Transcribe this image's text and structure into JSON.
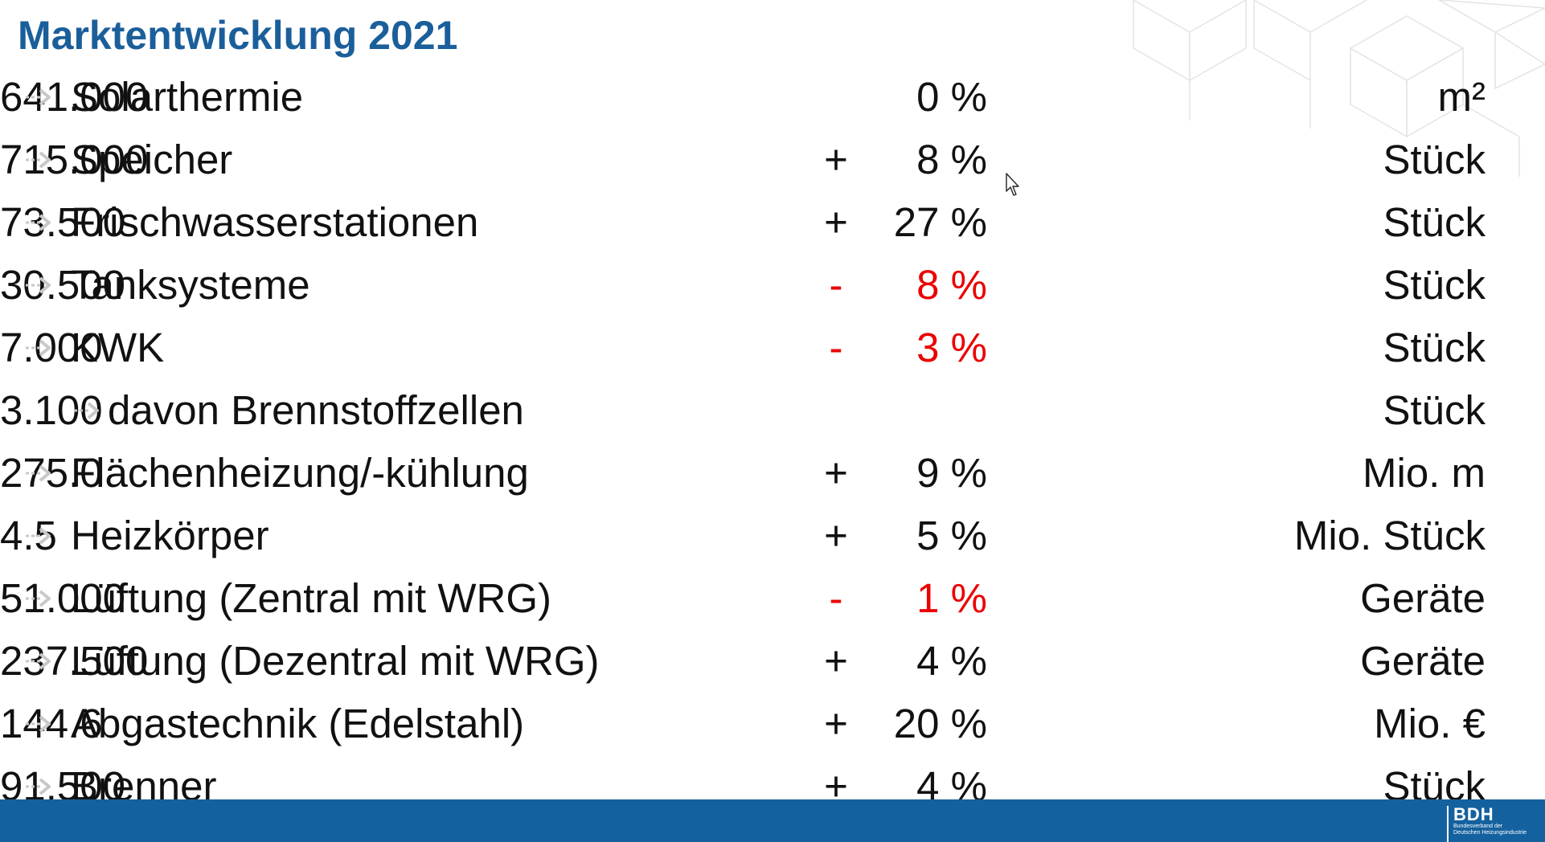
{
  "title": "Marktentwicklung 2021",
  "colors": {
    "title": "#1b5f9a",
    "negative": "#ea0000",
    "footer": "#14619f",
    "arrow": "#c8c8c8"
  },
  "rows": [
    {
      "label": "Solarthermie",
      "sign": "",
      "pct": "0 %",
      "value": "641.000",
      "unit": "m²",
      "negative": false,
      "indent": false
    },
    {
      "label": "Speicher",
      "sign": "+",
      "pct": "8 %",
      "value": "715.000",
      "unit": "Stück",
      "negative": false,
      "indent": false
    },
    {
      "label": "Frischwasserstationen",
      "sign": "+",
      "pct": "27 %",
      "value": "73.500",
      "unit": "Stück",
      "negative": false,
      "indent": false
    },
    {
      "label": "Tanksysteme",
      "sign": "-",
      "pct": "8 %",
      "value": "30.500",
      "unit": "Stück",
      "negative": true,
      "indent": false
    },
    {
      "label": "KWK",
      "sign": "-",
      "pct": "3 %",
      "value": "7.000",
      "unit": "Stück",
      "negative": true,
      "indent": false
    },
    {
      "label": "davon Brennstoffzellen",
      "sign": "",
      "pct": "",
      "value": "3.100",
      "unit": "Stück",
      "negative": false,
      "indent": true
    },
    {
      "label": "Flächenheizung/-kühlung",
      "sign": "+",
      "pct": "9 %",
      "value": "275.0",
      "unit": "Mio. m",
      "negative": false,
      "indent": false
    },
    {
      "label": "Heizkörper",
      "sign": "+",
      "pct": "5 %",
      "value": "4.5",
      "unit": "Mio. Stück",
      "negative": false,
      "indent": false
    },
    {
      "label": "Lüftung (Zentral mit WRG)",
      "sign": "-",
      "pct": "1 %",
      "value": "51.000",
      "unit": "Geräte",
      "negative": true,
      "indent": false
    },
    {
      "label": "Lüftung (Dezentral mit WRG)",
      "sign": "+",
      "pct": "4 %",
      "value": "237.500",
      "unit": "Geräte",
      "negative": false,
      "indent": false
    },
    {
      "label": "Abgastechnik (Edelstahl)",
      "sign": "+",
      "pct": "20 %",
      "value": "144.6",
      "unit": "Mio. €",
      "negative": false,
      "indent": false
    },
    {
      "label": "Brenner",
      "sign": "+",
      "pct": "4 %",
      "value": "91.500",
      "unit": "Stück",
      "negative": false,
      "indent": false
    }
  ],
  "footer": {
    "logo": "BDH",
    "logo_sub_1": "Bundesverband der",
    "logo_sub_2": "Deutschen Heizungsindustrie"
  },
  "icons": {
    "bullet": "arrow-bullet-icon",
    "cursor": "mouse-pointer-icon"
  }
}
